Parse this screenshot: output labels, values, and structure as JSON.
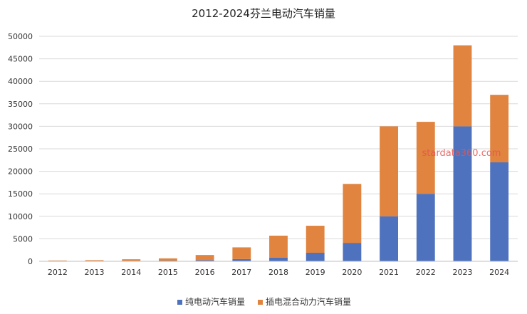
{
  "chart_data": {
    "type": "bar",
    "stacked": true,
    "title": "2012-2024芬兰电动汽车销量",
    "categories": [
      "2012",
      "2013",
      "2014",
      "2015",
      "2016",
      "2017",
      "2018",
      "2019",
      "2020",
      "2021",
      "2022",
      "2023",
      "2024"
    ],
    "series": [
      {
        "name": "纯电动汽车销量",
        "color": "#4e72be",
        "values": [
          30,
          50,
          100,
          150,
          250,
          500,
          800,
          1900,
          4100,
          10000,
          15000,
          30000,
          22000
        ]
      },
      {
        "name": "插电混合动力汽车销量",
        "color": "#e0843f",
        "values": [
          150,
          200,
          350,
          500,
          1150,
          2600,
          4900,
          6000,
          13100,
          20000,
          16000,
          18000,
          15000
        ]
      }
    ],
    "yticks": [
      "0",
      "5000",
      "10000",
      "15000",
      "20000",
      "25000",
      "30000",
      "35000",
      "40000",
      "45000",
      "50000"
    ],
    "ylim": [
      0,
      50000
    ],
    "grid": true,
    "legend": "bottom",
    "watermark": "stardata360.com"
  }
}
